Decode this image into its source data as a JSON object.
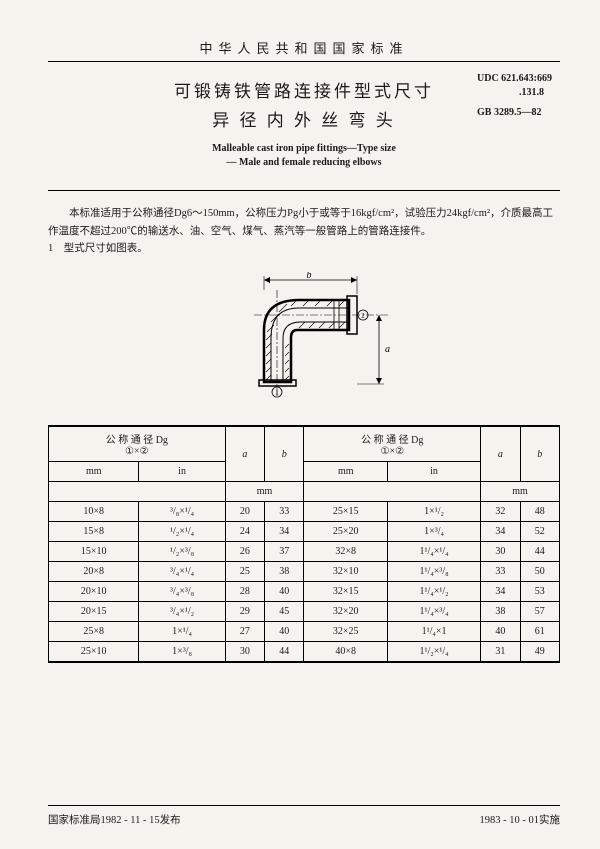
{
  "header": "中华人民共和国国家标准",
  "codes": {
    "udc": "UDC 621.643:669",
    "udc2": ".131.8",
    "gb": "GB 3289.5—82"
  },
  "title_cn_1": "可锻铸铁管路连接件型式尺寸",
  "title_cn_2": "异 径 内 外 丝 弯 头",
  "title_en_1": "Malleable cast iron pipe fittings—Type size",
  "title_en_2": "— Male and female reducing elbows",
  "para1": "本标准适用于公称通径Dg6～150mm，公称压力Pg小于或等于16kgf/cm²，试验压力24kgf/cm²，介质最高工作温度不超过200℃的输送水、油、空气、煤气、蒸汽等一般管路上的管路连接件。",
  "para2": "1　型式尺寸如图表。",
  "diagram": {
    "label_a": "a",
    "label_b": "b",
    "label_1": "①",
    "label_2": "②"
  },
  "table": {
    "head_dg": "公 称 通 径 Dg",
    "head_dg_sub": "①×②",
    "head_a": "a",
    "head_b": "b",
    "unit_mm": "mm",
    "unit_in": "in",
    "rows": [
      {
        "l_mm": "10×8",
        "l_in": "³/₈×¹/₄",
        "l_a": "20",
        "l_b": "33",
        "r_mm": "25×15",
        "r_in": "1×¹/₂",
        "r_a": "32",
        "r_b": "48"
      },
      {
        "l_mm": "15×8",
        "l_in": "¹/₂×¹/₄",
        "l_a": "24",
        "l_b": "34",
        "r_mm": "25×20",
        "r_in": "1×³/₄",
        "r_a": "34",
        "r_b": "52"
      },
      {
        "l_mm": "15×10",
        "l_in": "¹/₂×³/₈",
        "l_a": "26",
        "l_b": "37",
        "r_mm": "32×8",
        "r_in": "1¹/₄×¹/₄",
        "r_a": "30",
        "r_b": "44"
      },
      {
        "l_mm": "20×8",
        "l_in": "³/₄×¹/₄",
        "l_a": "25",
        "l_b": "38",
        "r_mm": "32×10",
        "r_in": "1¹/₄×³/₈",
        "r_a": "33",
        "r_b": "50"
      },
      {
        "l_mm": "20×10",
        "l_in": "³/₄×³/₈",
        "l_a": "28",
        "l_b": "40",
        "r_mm": "32×15",
        "r_in": "1¹/₄×¹/₂",
        "r_a": "34",
        "r_b": "53"
      },
      {
        "l_mm": "20×15",
        "l_in": "³/₄×¹/₂",
        "l_a": "29",
        "l_b": "45",
        "r_mm": "32×20",
        "r_in": "1¹/₄×³/₄",
        "r_a": "38",
        "r_b": "57"
      },
      {
        "l_mm": "25×8",
        "l_in": "1×¹/₄",
        "l_a": "27",
        "l_b": "40",
        "r_mm": "32×25",
        "r_in": "1¹/₄×1",
        "r_a": "40",
        "r_b": "61"
      },
      {
        "l_mm": "25×10",
        "l_in": "1×³/₈",
        "l_a": "30",
        "l_b": "44",
        "r_mm": "40×8",
        "r_in": "1¹/₂×¹/₄",
        "r_a": "31",
        "r_b": "49"
      }
    ]
  },
  "footer": {
    "left": "国家标准局1982 - 11 - 15发布",
    "right": "1983 - 10 - 01实施"
  }
}
